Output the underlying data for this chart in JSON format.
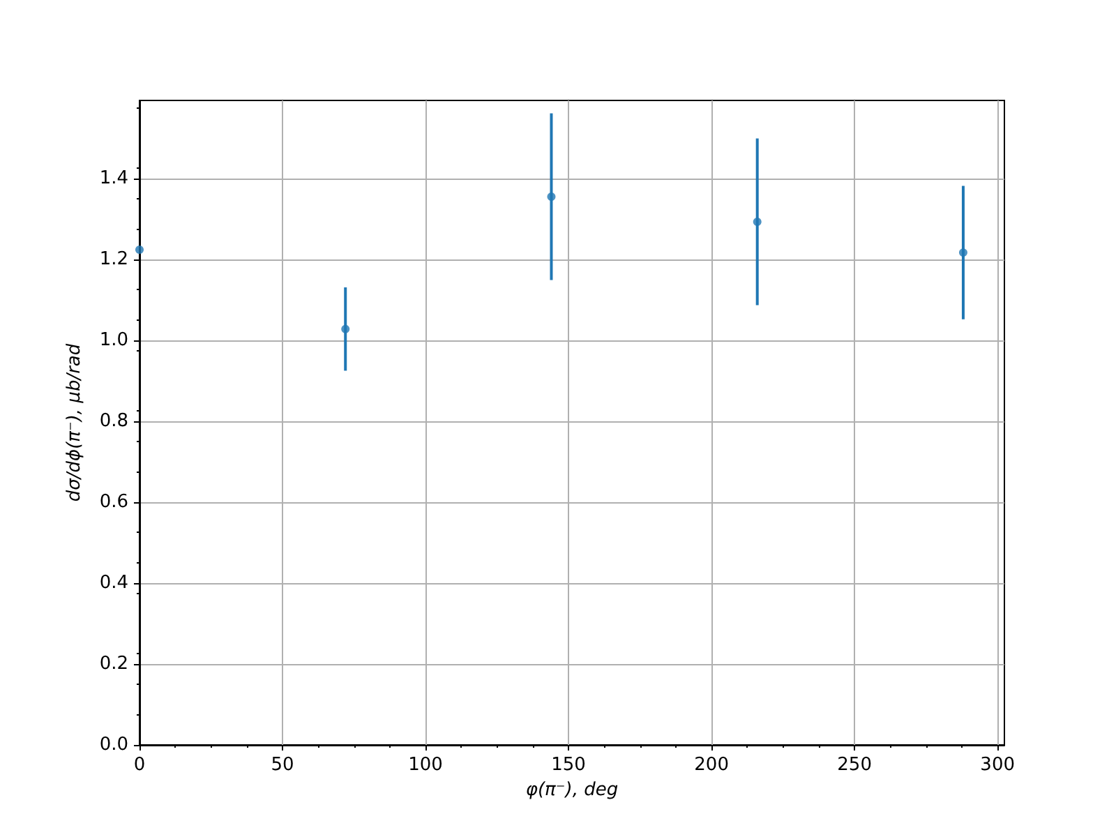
{
  "chart_data": {
    "type": "scatter",
    "xlabel": "φ(π⁻), deg",
    "ylabel": "dσ/dϕ(π⁻), μb/rad",
    "x": [
      0,
      72,
      144,
      216,
      288
    ],
    "values": [
      1.224,
      1.028,
      1.355,
      1.293,
      1.217
    ],
    "errors": [
      null,
      0.103,
      0.206,
      0.206,
      0.165
    ],
    "color": "#1f77b4",
    "marker": "circle",
    "xlim": [
      0,
      302.4
    ],
    "xticks": [
      0,
      50,
      100,
      150,
      200,
      250,
      300
    ],
    "ylim": [
      0,
      1.593
    ],
    "yticks": [
      {
        "value": 0,
        "label": "0.0"
      },
      0.2,
      0.4,
      0.6,
      0.8,
      {
        "value": 1,
        "label": "1.0"
      },
      1.2,
      1.4
    ],
    "grid": true
  }
}
